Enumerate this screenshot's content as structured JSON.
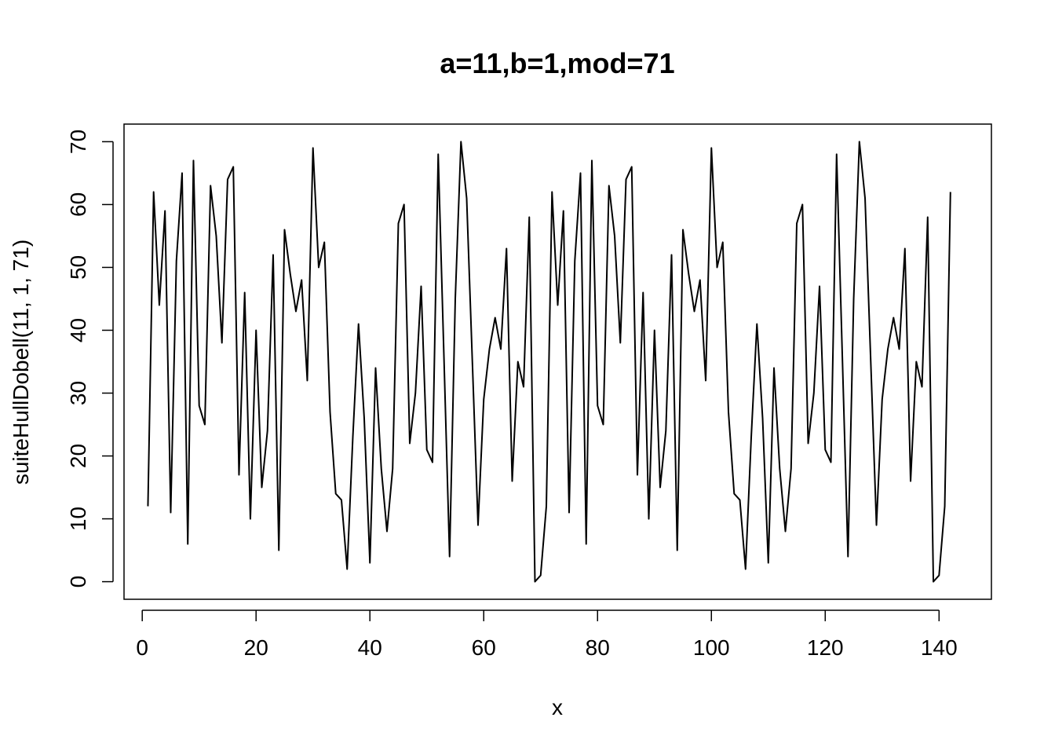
{
  "chart_data": {
    "type": "line",
    "title": "a=11,b=1,mod=71",
    "xlabel": "x",
    "ylabel": "suiteHullDobell(11, 1, 71)",
    "xlim": [
      -3.2,
      149.2
    ],
    "ylim": [
      -2.8,
      72.8
    ],
    "x_ticks": [
      0,
      20,
      40,
      60,
      80,
      100,
      120,
      140
    ],
    "y_ticks": [
      0,
      10,
      20,
      30,
      40,
      50,
      60,
      70
    ],
    "grid": false,
    "series": [
      {
        "x_start": 1,
        "values": [
          12,
          62,
          44,
          59,
          11,
          51,
          65,
          6,
          67,
          28,
          25,
          63,
          55,
          38,
          64,
          66,
          17,
          46,
          10,
          40,
          15,
          24,
          52,
          5,
          56,
          49,
          43,
          48,
          32,
          69,
          50,
          54,
          27,
          14,
          13,
          2,
          23,
          41,
          26,
          3,
          34,
          18,
          8,
          18,
          57,
          60,
          22,
          30,
          47,
          21,
          19,
          68,
          36,
          4,
          45,
          70,
          61,
          35,
          9,
          29,
          37,
          42,
          37,
          53,
          16,
          35,
          31,
          58,
          0,
          1,
          12,
          62,
          44,
          59,
          11,
          51,
          65,
          6,
          67,
          28,
          25,
          63,
          55,
          38,
          64,
          66,
          17,
          46,
          10,
          40,
          15,
          24,
          52,
          5,
          56,
          49,
          43,
          48,
          32,
          69,
          50,
          54,
          27,
          14,
          13,
          2,
          23,
          41,
          26,
          3,
          34,
          18,
          8,
          18,
          57,
          60,
          22,
          30,
          47,
          21,
          19,
          68,
          36,
          4,
          45,
          70,
          61,
          35,
          9,
          29,
          37,
          42,
          37,
          53,
          16,
          35,
          31,
          58,
          0,
          1,
          12,
          62
        ]
      }
    ]
  }
}
